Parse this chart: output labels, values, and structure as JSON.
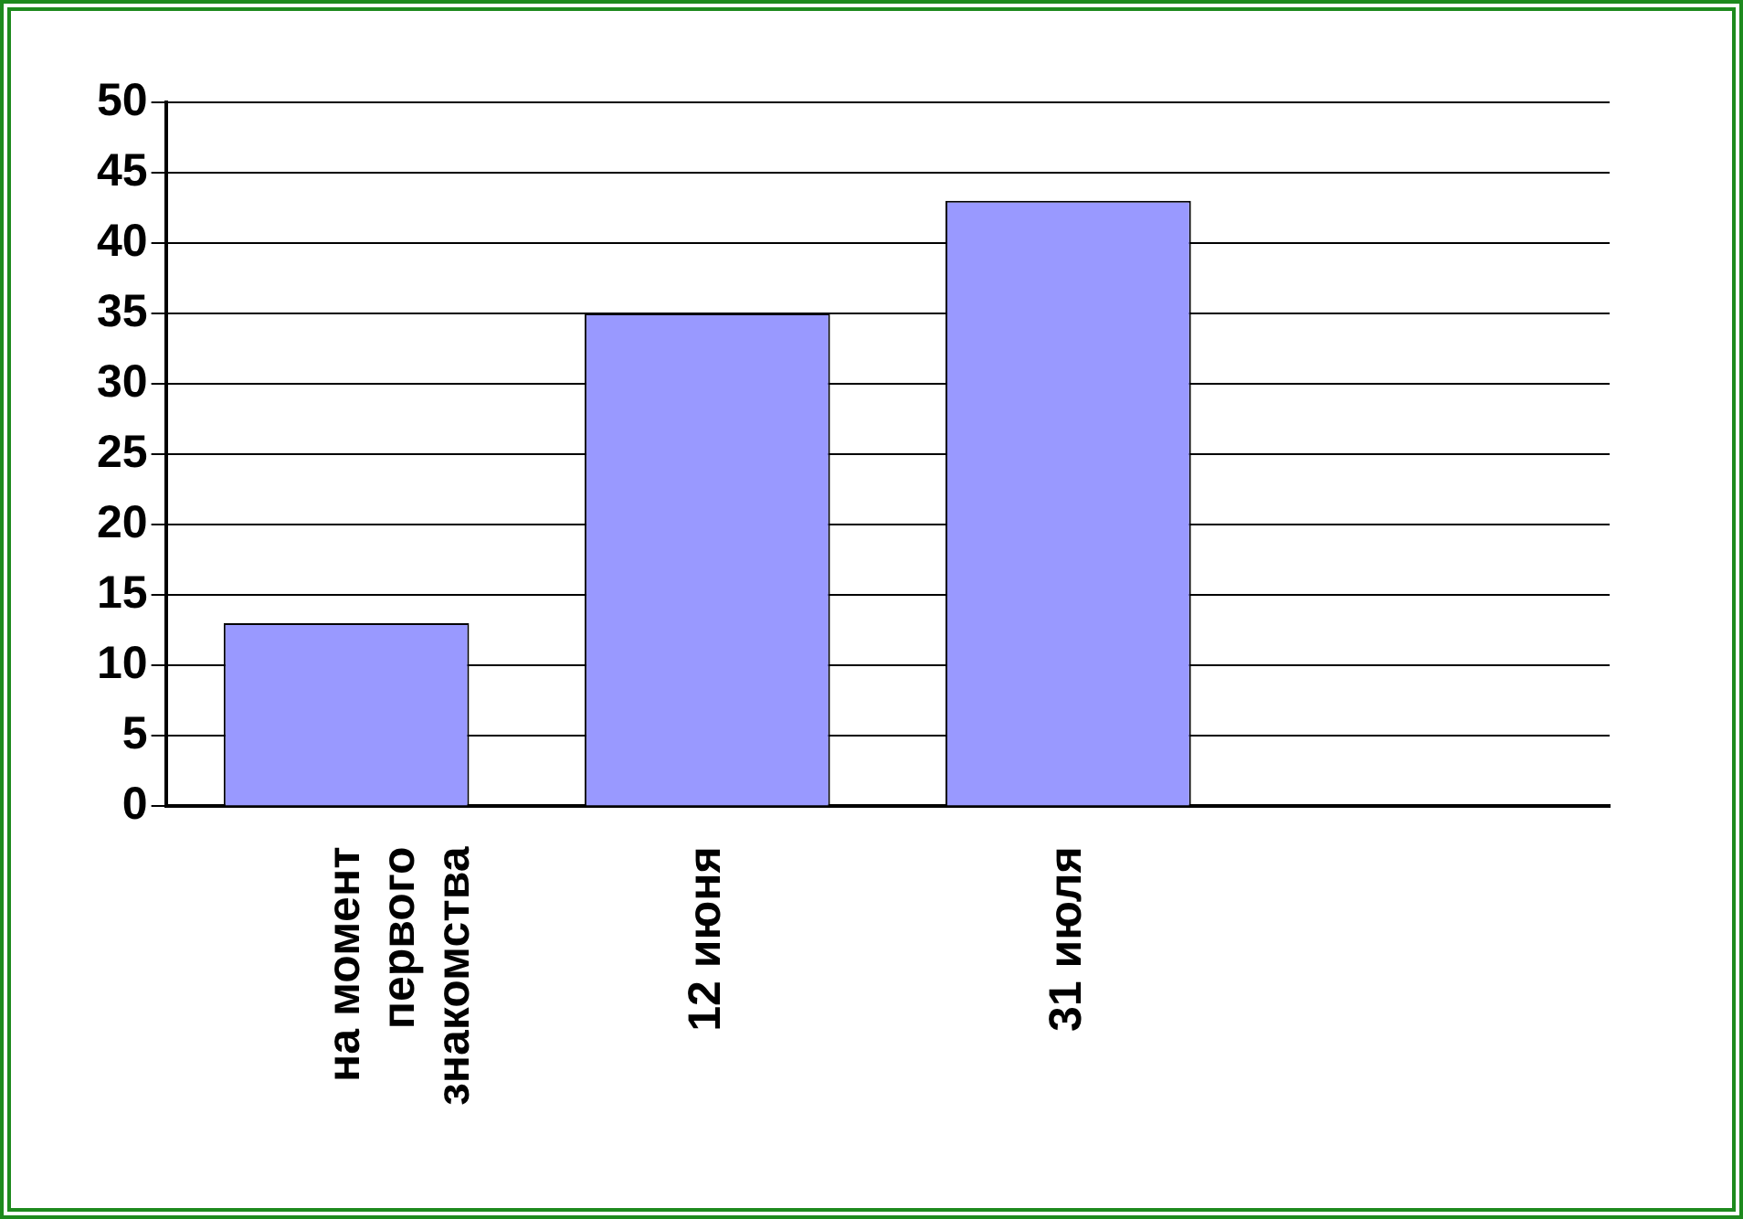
{
  "chart_data": {
    "type": "bar",
    "categories": [
      "на момент первого знакомства",
      "12 июня",
      "31 июля",
      null
    ],
    "values": [
      13,
      35,
      43,
      null
    ],
    "color": "#9999ff",
    "ylim": [
      0,
      50
    ],
    "yticks": [
      0,
      5,
      10,
      15,
      20,
      25,
      30,
      35,
      40,
      45,
      50
    ],
    "grid": "y",
    "legend": false
  }
}
